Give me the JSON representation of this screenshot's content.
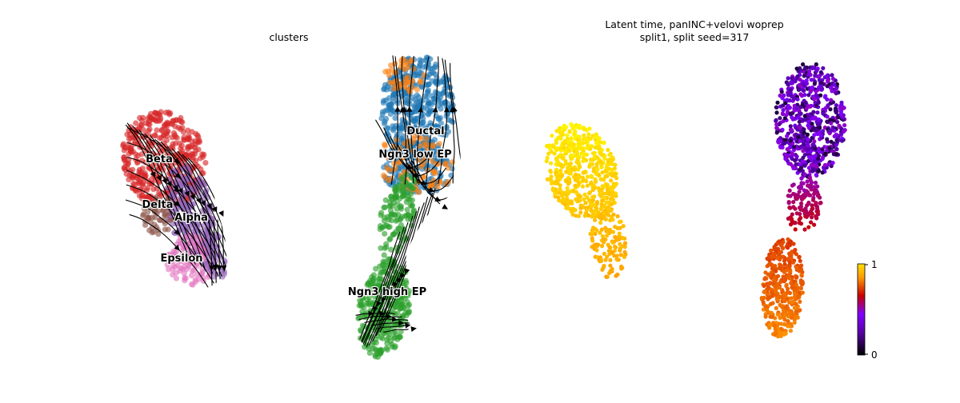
{
  "chart_data": [
    {
      "type": "scatter",
      "title": "clusters",
      "xlabel": "",
      "ylabel": "",
      "grid": false,
      "legend": "on data",
      "overlay": "velocity streamlines",
      "series": [
        {
          "name": "Ductal",
          "color": "#1f77b4"
        },
        {
          "name": "Ngn3 low EP",
          "color": "#ff7f0e"
        },
        {
          "name": "Ngn3 high EP",
          "color": "#2ca02c"
        },
        {
          "name": "Beta",
          "color": "#d62728"
        },
        {
          "name": "Alpha",
          "color": "#9467bd"
        },
        {
          "name": "Delta",
          "color": "#8c564b"
        },
        {
          "name": "Epsilon",
          "color": "#e377c2"
        }
      ]
    },
    {
      "type": "scatter",
      "title": "Latent time, panINC+velovi woprep",
      "subtitle": "split1, split seed=317",
      "xlabel": "",
      "ylabel": "",
      "grid": false,
      "colorbar": {
        "colormap": "gnuplot",
        "min": 0,
        "max": 1,
        "ticks": [
          "0",
          "1"
        ],
        "stops": [
          "#000000",
          "#8000ff",
          "#c80000",
          "#ff9900",
          "#ffff00"
        ]
      }
    }
  ]
}
